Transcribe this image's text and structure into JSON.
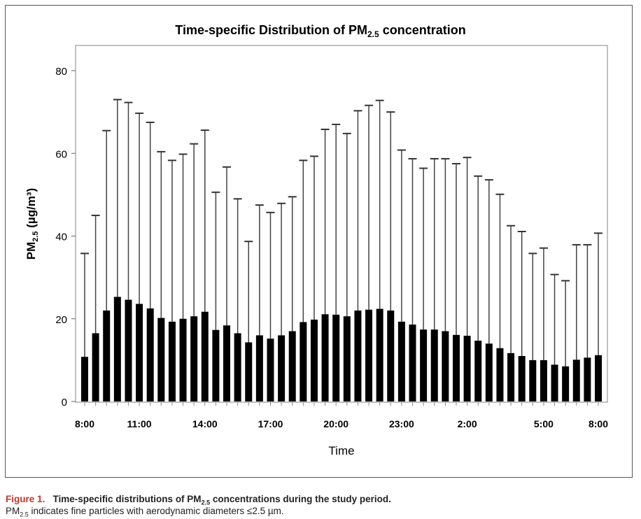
{
  "chart_data": {
    "type": "bar",
    "title": "Time-specific Distribution of PM2.5 concentration",
    "title_parts": {
      "pre": "Time-specific Distribution of PM",
      "sub": "2.5",
      "post": " concentration"
    },
    "xlabel": "Time",
    "ylabel_parts": {
      "pre": "PM",
      "sub": "2.5",
      "post": " (µg/m³)"
    },
    "ylim": [
      0,
      80
    ],
    "yticks": [
      0,
      20,
      40,
      60,
      80
    ],
    "xtick_labels": [
      {
        "label": "8:00",
        "bar_index": 0
      },
      {
        "label": "11:00",
        "bar_index": 5
      },
      {
        "label": "14:00",
        "bar_index": 11
      },
      {
        "label": "17:00",
        "bar_index": 17
      },
      {
        "label": "20:00",
        "bar_index": 23
      },
      {
        "label": "23:00",
        "bar_index": 29
      },
      {
        "label": "2:00",
        "bar_index": 35
      },
      {
        "label": "5:00",
        "bar_index": 42
      },
      {
        "label": "8:00",
        "bar_index": 47
      }
    ],
    "series": [
      {
        "name": "mean",
        "values": [
          10.8,
          16.5,
          22,
          25.3,
          24.6,
          23.6,
          22.5,
          20.2,
          19.3,
          20,
          20.6,
          21.7,
          17.3,
          18.4,
          16.5,
          14.3,
          16,
          15.2,
          16,
          17,
          19.2,
          19.8,
          21.1,
          21,
          20.6,
          22,
          22.2,
          22.4,
          22,
          19.3,
          18.6,
          17.4,
          17.4,
          17,
          16.1,
          15.9,
          14.7,
          14,
          12.9,
          11.7,
          11,
          10,
          10,
          8.9,
          8.5,
          10.1,
          10.6,
          11.2
        ]
      },
      {
        "name": "upper_error",
        "values": [
          35.8,
          45,
          65.5,
          73,
          72.3,
          69.7,
          67.5,
          60.4,
          58.3,
          59.8,
          62.3,
          65.6,
          50.6,
          56.7,
          49,
          38.7,
          47.5,
          45.7,
          47.9,
          49.5,
          58.3,
          59.3,
          65.8,
          67,
          64.8,
          70.3,
          71.6,
          72.8,
          70,
          60.8,
          58.7,
          56.4,
          58.7,
          58.7,
          57.5,
          59,
          54.5,
          53.6,
          50.1,
          42.5,
          41.1,
          35.8,
          37.1,
          30.7,
          29.2,
          37.9,
          37.9,
          40.7
        ]
      }
    ],
    "grid": false
  },
  "caption": {
    "figure_label": "Figure 1.",
    "title_pre": "Time-specific distributions of PM",
    "title_sub": "2.5",
    "title_post": " concentrations during the study period.",
    "note_pre": "PM",
    "note_sub": "2.5",
    "note_post": " indicates fine particles with aerodynamic diameters ≤2.5 µm."
  }
}
